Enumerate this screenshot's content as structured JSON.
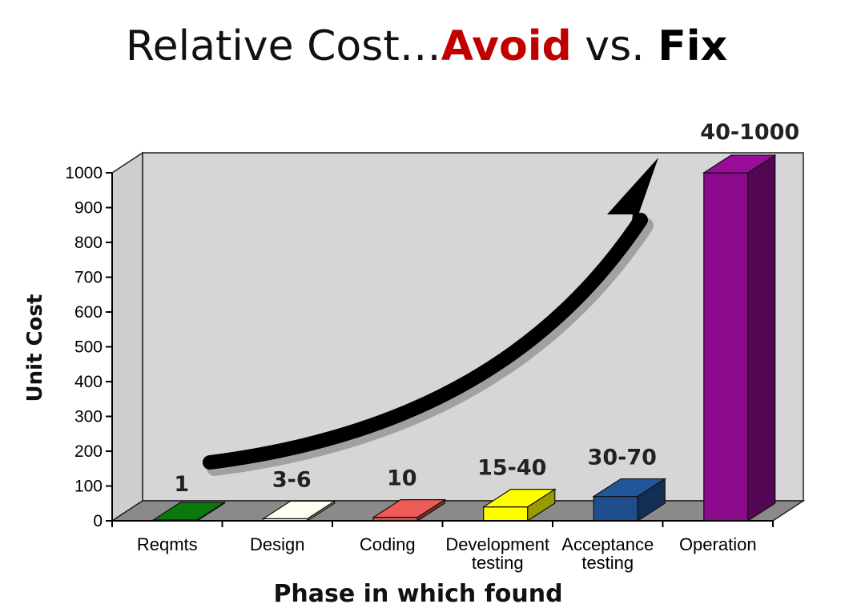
{
  "title": {
    "prefix": "Relative Cost…",
    "avoid": "Avoid",
    "middle": " vs. ",
    "fix": "Fix"
  },
  "chart_data": {
    "type": "bar",
    "style": "3d",
    "categories": [
      [
        "Reqmts"
      ],
      [
        "Design"
      ],
      [
        "Coding"
      ],
      [
        "Development",
        "testing"
      ],
      [
        "Acceptance",
        "testing"
      ],
      [
        "Operation"
      ]
    ],
    "values": [
      1,
      6,
      10,
      40,
      70,
      1000
    ],
    "data_labels": [
      "1",
      "3-6",
      "10",
      "15-40",
      "30-70",
      "40-1000"
    ],
    "colors": [
      "#0a6e0a",
      "#f0ecdc",
      "#d9534f",
      "#ffff00",
      "#1f4e8c",
      "#8b0a8b"
    ],
    "xlabel": "Phase in which found",
    "ylabel": "Unit Cost",
    "ylim": [
      0,
      1000
    ],
    "yticks": [
      0,
      100,
      200,
      300,
      400,
      500,
      600,
      700,
      800,
      900,
      1000
    ],
    "grid": false,
    "legend": "none",
    "annotation": "curved-arrow-increasing"
  }
}
